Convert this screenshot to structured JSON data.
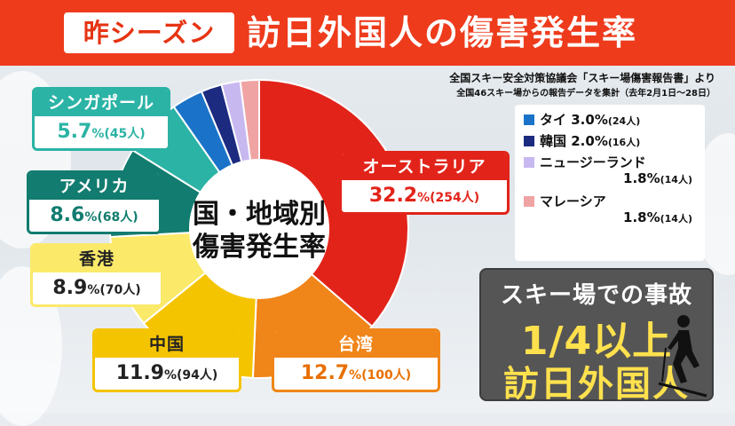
{
  "header": {
    "badge": "昨シーズン",
    "title": "訪日外国人の傷害発生率"
  },
  "source": {
    "line1": "全国スキー安全対策協議会「スキー場傷害報告書」より",
    "line2": "全国46スキー場からの報告データを集計（去年2月1日〜28日）"
  },
  "chart_data": {
    "type": "pie",
    "title": "国・地域別\n傷害発生率",
    "center_line1": "国・地域別",
    "center_line2": "傷害発生率",
    "unit_percent": "%",
    "slices": [
      {
        "name": "オーストラリア",
        "percent": 32.2,
        "count": "254人",
        "color": "#e2231a"
      },
      {
        "name": "台湾",
        "percent": 12.7,
        "count": "100人",
        "color": "#f08519"
      },
      {
        "name": "中国",
        "percent": 11.9,
        "count": "94人",
        "color": "#f5c400"
      },
      {
        "name": "香港",
        "percent": 8.9,
        "count": "70人",
        "color": "#fbe96a"
      },
      {
        "name": "アメリカ",
        "percent": 8.6,
        "count": "68人",
        "color": "#117c6f"
      },
      {
        "name": "シンガポール",
        "percent": 5.7,
        "count": "45人",
        "color": "#2bb3a5"
      },
      {
        "name": "タイ",
        "percent": 3.0,
        "count": "24人",
        "color": "#1a73c8"
      },
      {
        "name": "韓国",
        "percent": 2.0,
        "count": "16人",
        "color": "#1c2a80"
      },
      {
        "name": "ニュージーランド",
        "percent": 1.8,
        "count": "14人",
        "color": "#c7b8f0"
      },
      {
        "name": "マレーシア",
        "percent": 1.8,
        "count": "14人",
        "color": "#f0a3a3"
      }
    ]
  },
  "callouts": {
    "australia": {
      "name": "オーストラリア",
      "pct": "32.2",
      "unit": "%",
      "count": "(254人)"
    },
    "taiwan": {
      "name": "台湾",
      "pct": "12.7",
      "unit": "%",
      "count": "(100人)"
    },
    "china": {
      "name": "中国",
      "pct": "11.9",
      "unit": "%",
      "count": "(94人)"
    },
    "hongkong": {
      "name": "香港",
      "pct": "8.9",
      "unit": "%",
      "count": "(70人)"
    },
    "usa": {
      "name": "アメリカ",
      "pct": "8.6",
      "unit": "%",
      "count": "(68人)"
    },
    "singapore": {
      "name": "シンガポール",
      "pct": "5.7",
      "unit": "%",
      "count": "(45人)"
    }
  },
  "legend": [
    {
      "name": "タイ",
      "pct": "3.0%",
      "count": "(24人)",
      "color": "#1a73c8"
    },
    {
      "name": "韓国",
      "pct": "2.0%",
      "count": "(16人)",
      "color": "#1c2a80"
    },
    {
      "name": "ニュージーランド",
      "pct": "1.8%",
      "count": "(14人)",
      "color": "#c7b8f0"
    },
    {
      "name": "マレーシア",
      "pct": "1.8%",
      "count": "(14人)",
      "color": "#f0a3a3"
    }
  ],
  "accident": {
    "line1": "スキー場での事故",
    "line2": "1/4以上",
    "line3": "訪日外国人"
  }
}
